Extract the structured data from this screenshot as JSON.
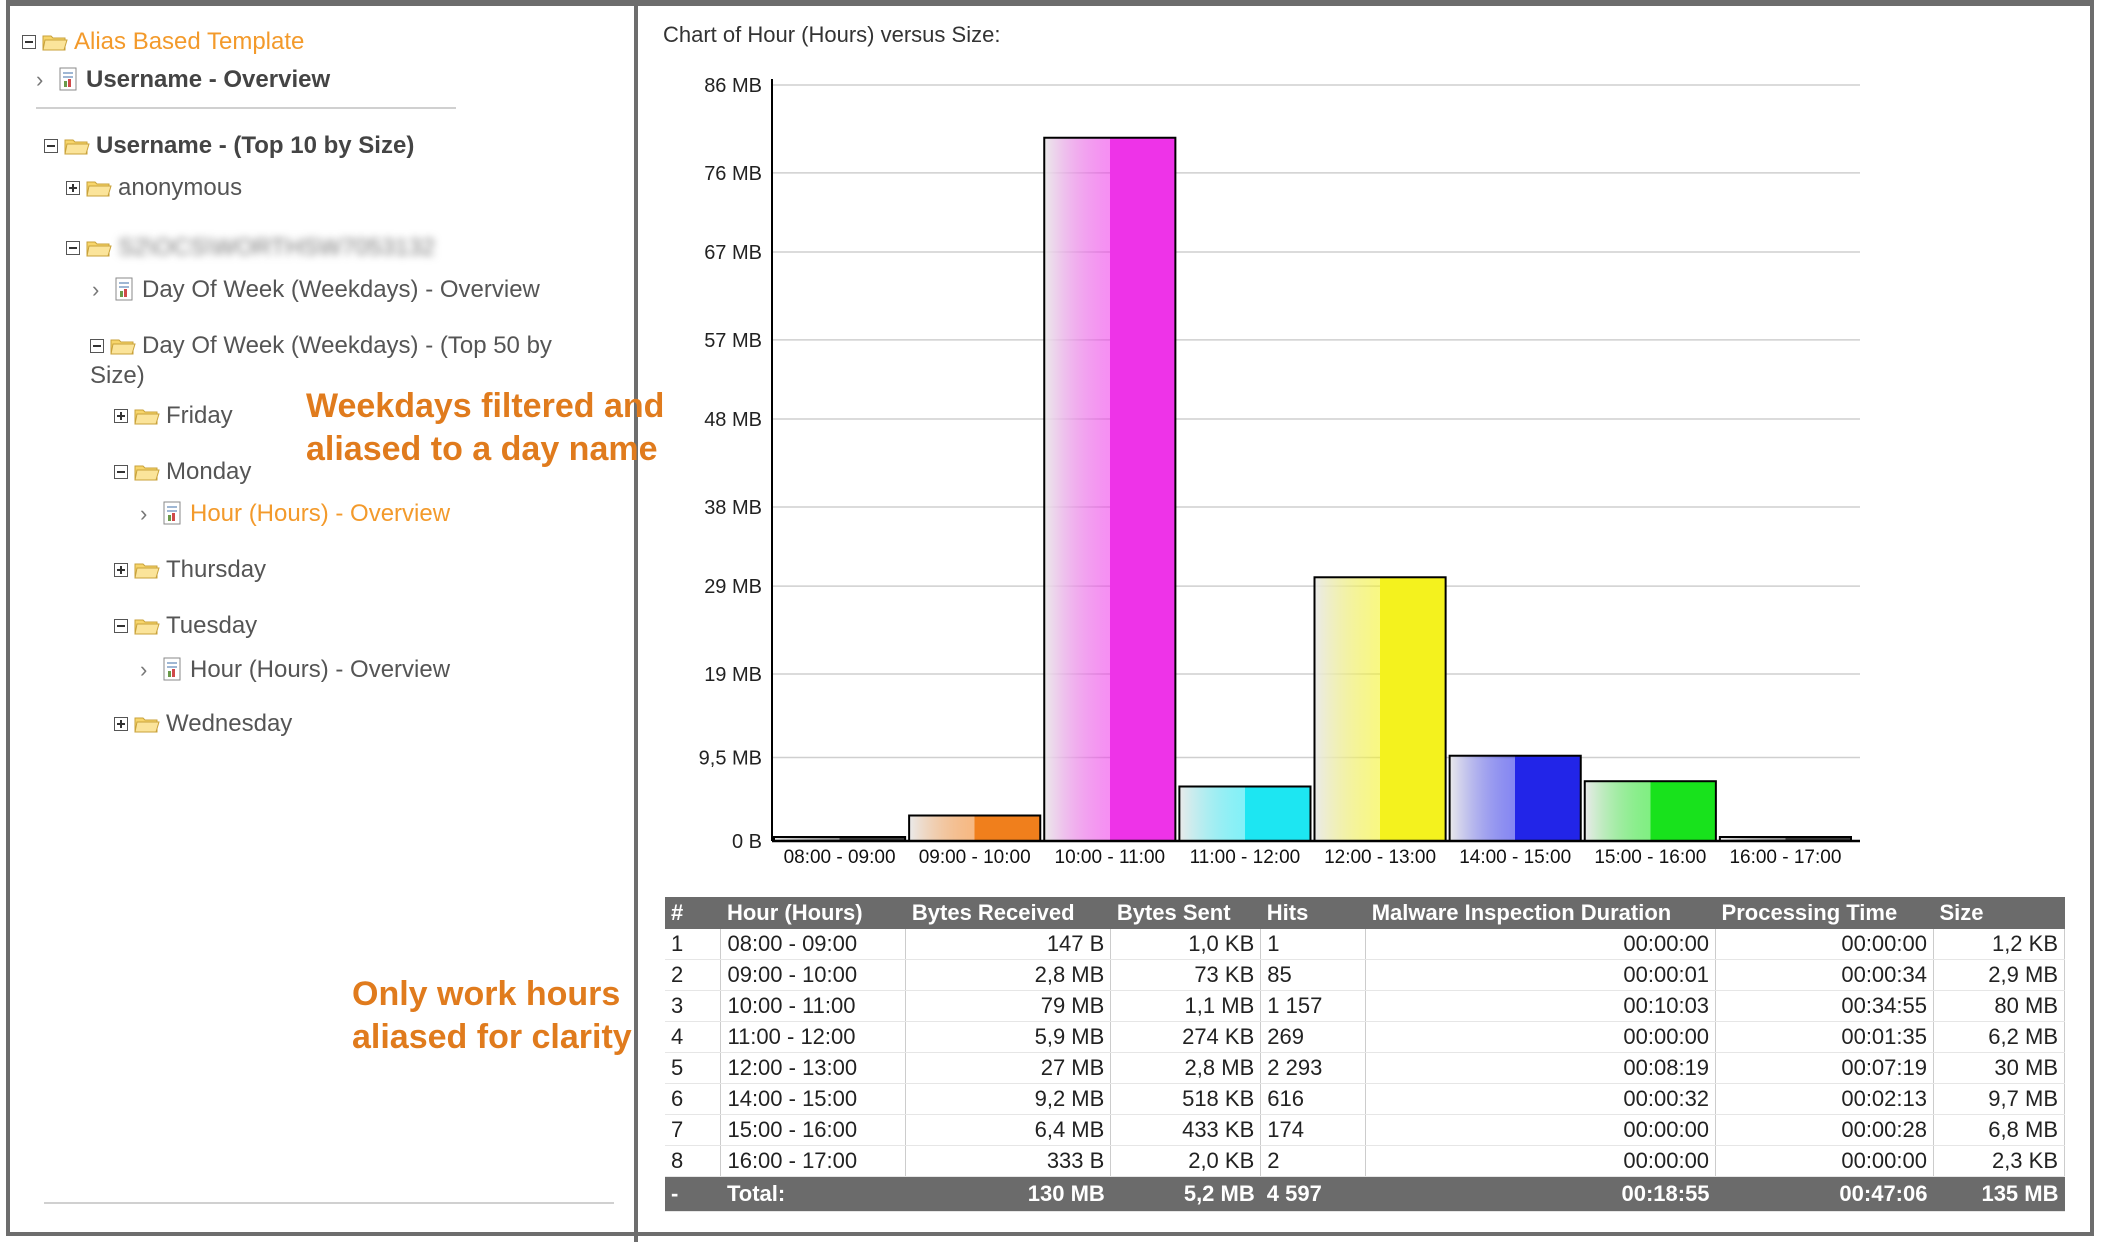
{
  "tree": {
    "root_label": "Alias Based Template",
    "username_overview": "Username - Overview",
    "username_top10": "Username - (Top 10 by Size)",
    "anonymous": "anonymous",
    "masked_user": "S2\\OCS\\WORTHSW7053132",
    "dow_overview": "Day Of Week (Weekdays) - Overview",
    "dow_top50_line1": "Day Of Week (Weekdays) - (Top 50 by",
    "dow_top50_line2": "Size)",
    "friday": "Friday",
    "monday": "Monday",
    "monday_hour_overview": "Hour (Hours) - Overview",
    "thursday": "Thursday",
    "tuesday": "Tuesday",
    "tuesday_hour_overview": "Hour (Hours) - Overview",
    "wednesday": "Wednesday"
  },
  "annotations": {
    "weekdays_line1": "Weekdays filtered and",
    "weekdays_line2": "aliased to a day name",
    "workhours_line1": "Only work hours",
    "workhours_line2": "aliased for clarity"
  },
  "chart_title": "Chart of Hour (Hours) versus Size:",
  "chart_data": {
    "type": "bar",
    "title": "Chart of Hour (Hours) versus Size:",
    "categories": [
      "08:00 - 09:00",
      "09:00 - 10:00",
      "10:00 - 11:00",
      "11:00 - 12:00",
      "12:00 - 13:00",
      "14:00 - 15:00",
      "15:00 - 16:00",
      "16:00 - 17:00"
    ],
    "values": [
      0.0012,
      2.9,
      80,
      6.2,
      30,
      9.7,
      6.8,
      0.0023
    ],
    "unit": "MB",
    "ylim": [
      0,
      86
    ],
    "yticks": [
      0,
      9.5,
      19,
      29,
      38,
      48,
      57,
      67,
      76,
      86
    ],
    "ytick_labels": [
      "0 B",
      "9,5 MB",
      "19 MB",
      "29 MB",
      "38 MB",
      "48 MB",
      "57 MB",
      "67 MB",
      "76 MB",
      "86 MB"
    ],
    "colors": [
      "#3a3a3a",
      "#f07f1c",
      "#ee33e8",
      "#1de6f2",
      "#f4f21e",
      "#2225e8",
      "#18e21c",
      "#3a3a3a"
    ],
    "grid": true
  },
  "table": {
    "headers": [
      "#",
      "Hour (Hours)",
      "Bytes Received",
      "Bytes Sent",
      "Hits",
      "Malware Inspection Duration",
      "Processing Time",
      "Size"
    ],
    "rows": [
      [
        "1",
        "08:00 - 09:00",
        "147 B",
        "1,0 KB",
        "1",
        "00:00:00",
        "00:00:00",
        "1,2 KB"
      ],
      [
        "2",
        "09:00 - 10:00",
        "2,8 MB",
        "73 KB",
        "85",
        "00:00:01",
        "00:00:34",
        "2,9 MB"
      ],
      [
        "3",
        "10:00 - 11:00",
        "79 MB",
        "1,1 MB",
        "1 157",
        "00:10:03",
        "00:34:55",
        "80 MB"
      ],
      [
        "4",
        "11:00 - 12:00",
        "5,9 MB",
        "274 KB",
        "269",
        "00:00:00",
        "00:01:35",
        "6,2 MB"
      ],
      [
        "5",
        "12:00 - 13:00",
        "27 MB",
        "2,8 MB",
        "2 293",
        "00:08:19",
        "00:07:19",
        "30 MB"
      ],
      [
        "6",
        "14:00 - 15:00",
        "9,2 MB",
        "518 KB",
        "616",
        "00:00:32",
        "00:02:13",
        "9,7 MB"
      ],
      [
        "7",
        "15:00 - 16:00",
        "6,4 MB",
        "433 KB",
        "174",
        "00:00:00",
        "00:00:28",
        "6,8 MB"
      ],
      [
        "8",
        "16:00 - 17:00",
        "333 B",
        "2,0 KB",
        "2",
        "00:00:00",
        "00:00:00",
        "2,3 KB"
      ]
    ],
    "total": [
      "-",
      "Total:",
      "130 MB",
      "5,2 MB",
      "4 597",
      "00:18:55",
      "00:47:06",
      "135 MB"
    ]
  }
}
